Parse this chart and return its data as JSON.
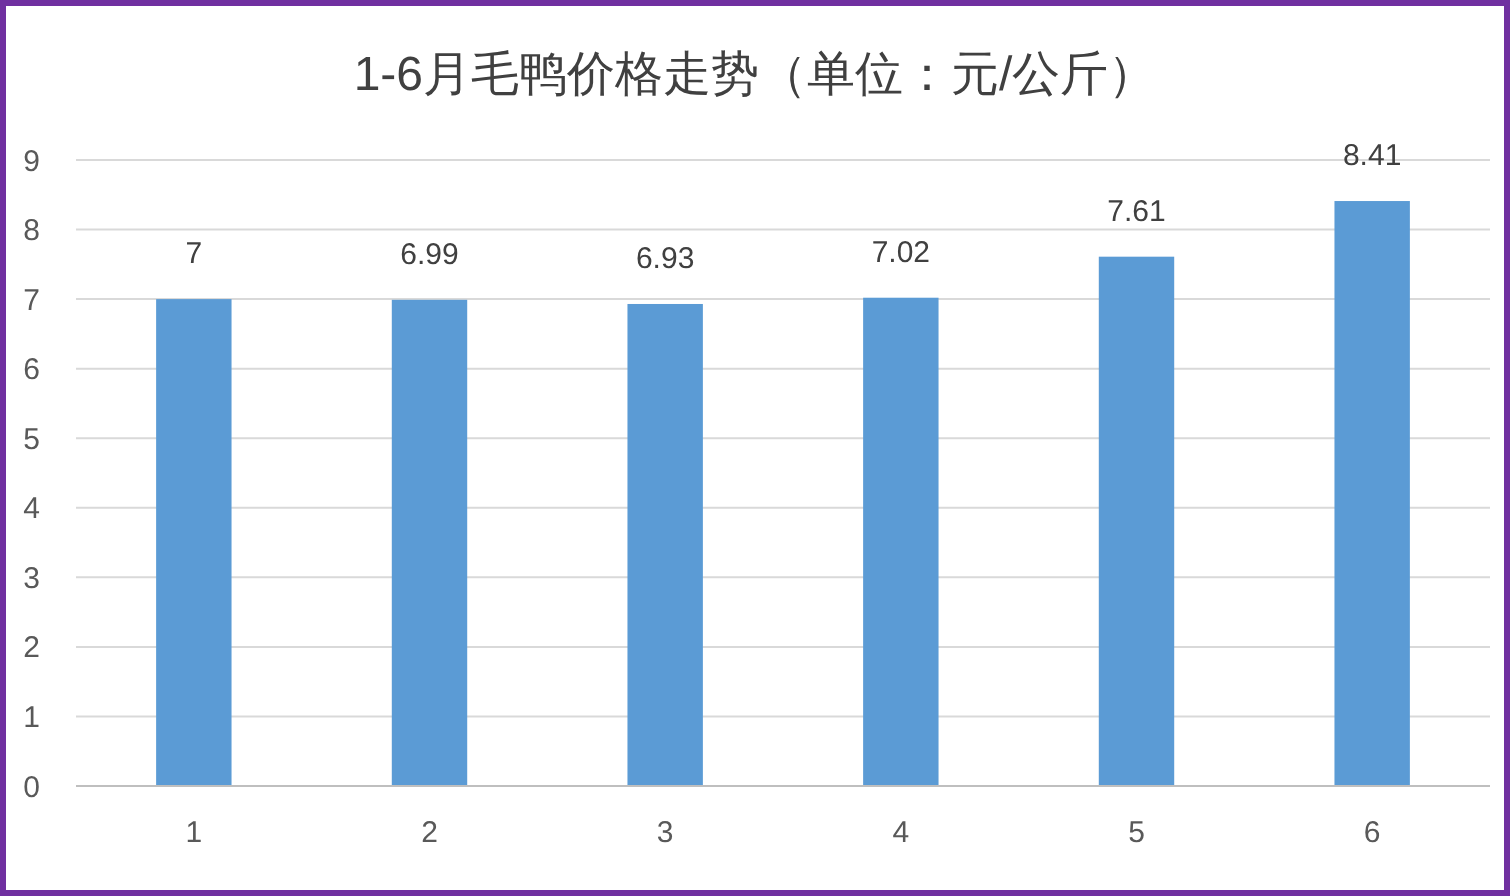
{
  "chart_data": {
    "type": "bar",
    "title": "1-6月毛鸭价格走势（单位：元/公斤）",
    "categories": [
      "1",
      "2",
      "3",
      "4",
      "5",
      "6"
    ],
    "values": [
      7,
      6.99,
      6.93,
      7.02,
      7.61,
      8.41
    ],
    "color": "#5b9bd5",
    "ylim": [
      0,
      9
    ],
    "yticks": [
      0,
      1,
      2,
      3,
      4,
      5,
      6,
      7,
      8,
      9
    ],
    "grid": "y",
    "data_labels": true
  }
}
